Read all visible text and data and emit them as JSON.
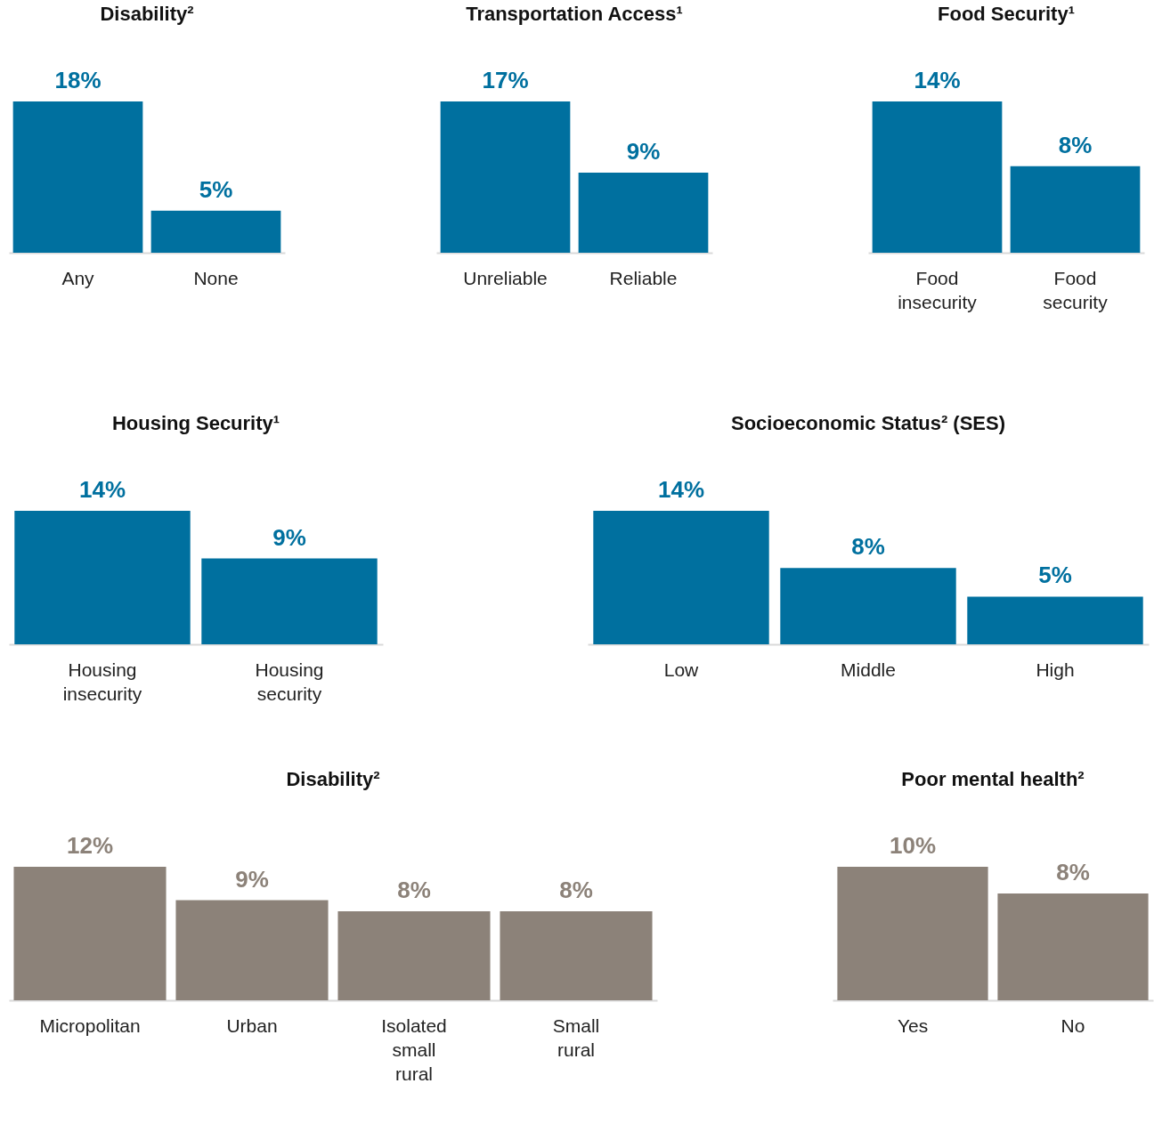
{
  "chart_data": [
    {
      "type": "bar",
      "title": "Disability²",
      "categories": [
        "Any",
        "None"
      ],
      "values": [
        18,
        5
      ],
      "value_labels": [
        "18%",
        "5%"
      ],
      "color": "#00709f"
    },
    {
      "type": "bar",
      "title": "Transportation Access¹",
      "categories": [
        "Unreliable",
        "Reliable"
      ],
      "values": [
        17,
        9
      ],
      "value_labels": [
        "17%",
        "9%"
      ],
      "color": "#00709f"
    },
    {
      "type": "bar",
      "title": "Food Security¹",
      "categories": [
        "Food insecurity",
        "Food security"
      ],
      "values": [
        14,
        8
      ],
      "value_labels": [
        "14%",
        "8%"
      ],
      "color": "#00709f"
    },
    {
      "type": "bar",
      "title": "Housing Security¹",
      "categories": [
        "Housing insecurity",
        "Housing security"
      ],
      "values": [
        14,
        9
      ],
      "value_labels": [
        "14%",
        "9%"
      ],
      "color": "#00709f"
    },
    {
      "type": "bar",
      "title": "Socioeconomic Status² (SES)",
      "categories": [
        "Low",
        "Middle",
        "High"
      ],
      "values": [
        14,
        8,
        5
      ],
      "value_labels": [
        "14%",
        "8%",
        "5%"
      ],
      "color": "#00709f"
    },
    {
      "type": "bar",
      "title": "Disability²",
      "categories": [
        "Micropolitan",
        "Urban",
        "Isolated small rural",
        "Small rural"
      ],
      "values": [
        12,
        9,
        8,
        8
      ],
      "value_labels": [
        "12%",
        "9%",
        "8%",
        "8%"
      ],
      "color": "#8c8279"
    },
    {
      "type": "bar",
      "title": "Poor mental health²",
      "categories": [
        "Yes",
        "No"
      ],
      "values": [
        10,
        8
      ],
      "value_labels": [
        "10%",
        "8%"
      ],
      "color": "#8c8279"
    }
  ]
}
